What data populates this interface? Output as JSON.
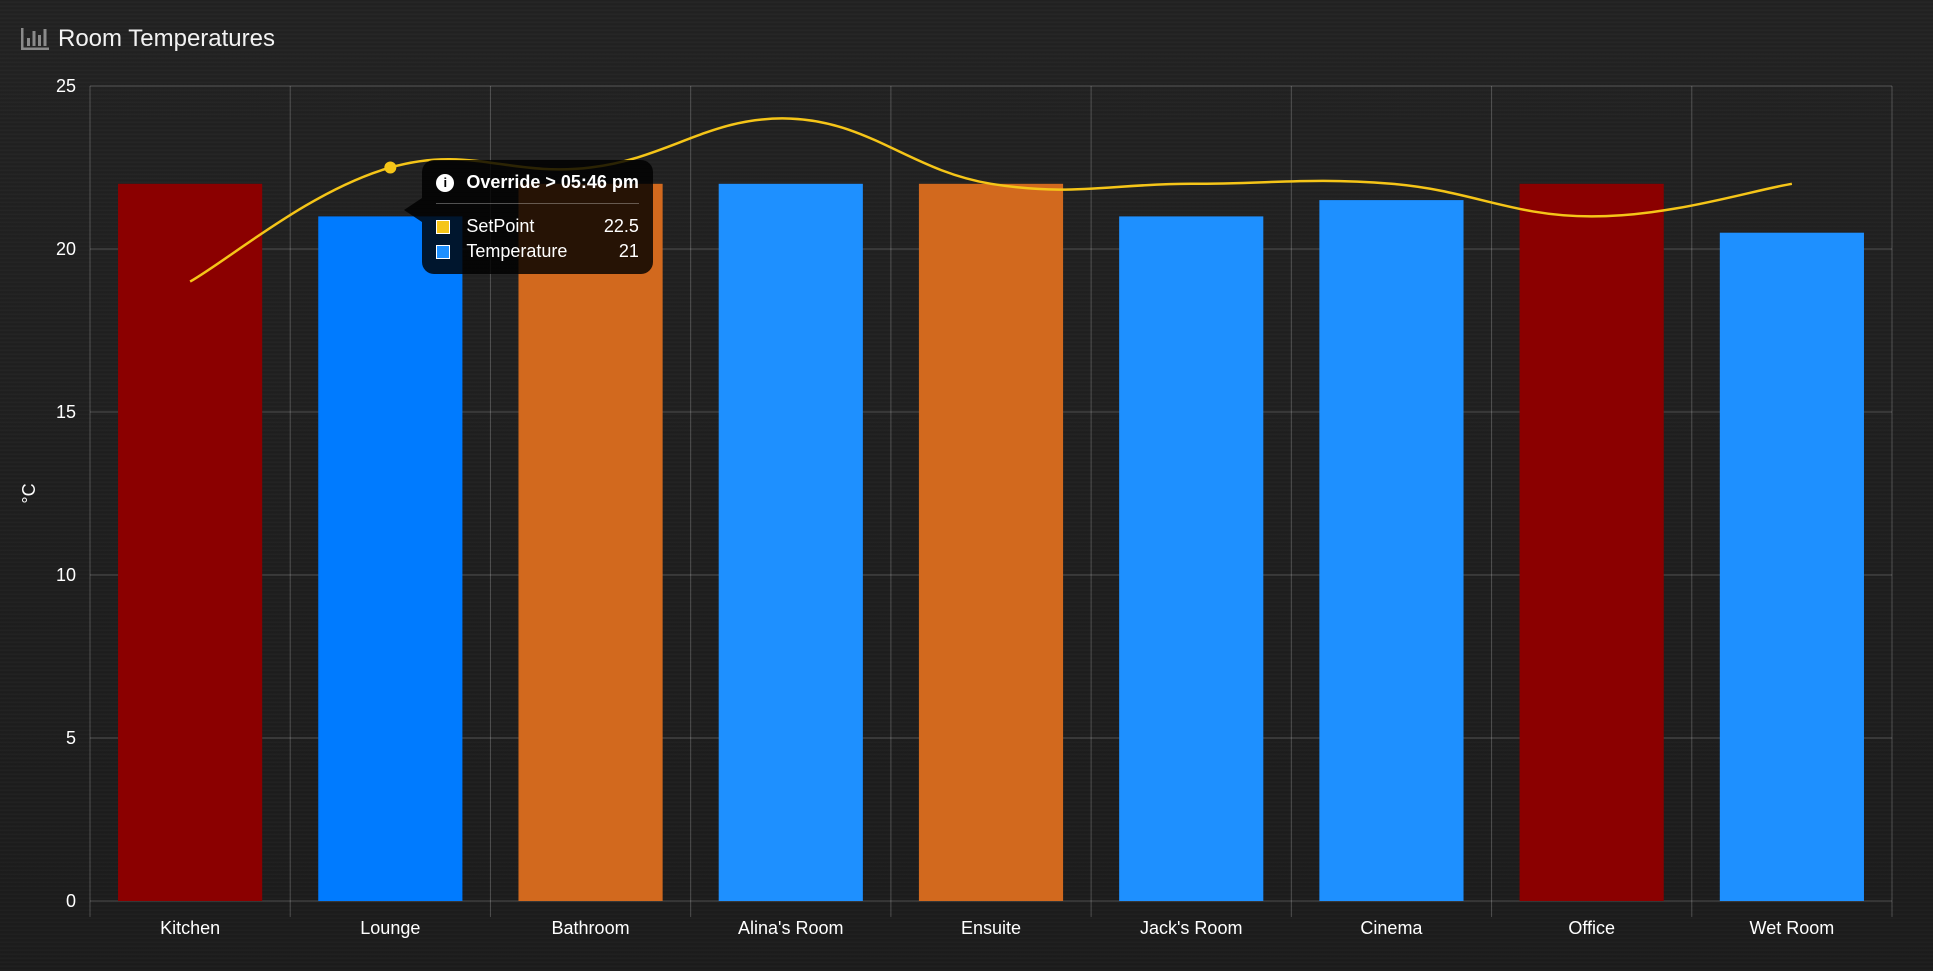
{
  "header": {
    "title": "Room Temperatures",
    "icon": "bar-chart-icon"
  },
  "chart_data": {
    "type": "bar",
    "categories": [
      "Kitchen",
      "Lounge",
      "Bathroom",
      "Alina's Room",
      "Ensuite",
      "Jack's Room",
      "Cinema",
      "Office",
      "Wet Room"
    ],
    "series": [
      {
        "name": "Temperature",
        "type": "bar",
        "values": [
          22,
          21,
          22,
          22,
          22,
          21,
          21.5,
          22,
          20.5
        ],
        "colors": [
          "#8b0000",
          "#007bff",
          "#d2691e",
          "#1e90ff",
          "#d2691e",
          "#1e90ff",
          "#1e90ff",
          "#8b0000",
          "#1e90ff"
        ]
      },
      {
        "name": "SetPoint",
        "type": "line",
        "values": [
          19,
          22.5,
          22.5,
          24,
          22,
          22,
          22,
          21,
          22
        ],
        "color": "#f5c518"
      }
    ],
    "ylabel": "°C",
    "ylim": [
      0,
      25
    ],
    "yticks": [
      0,
      5,
      10,
      15,
      20,
      25
    ],
    "grid": true
  },
  "tooltip": {
    "title": "Override > 05:46 pm",
    "category_index": 1,
    "rows": [
      {
        "name": "SetPoint",
        "value": "22.5",
        "color": "#f5c518"
      },
      {
        "name": "Temperature",
        "value": "21",
        "color": "#1e90ff"
      }
    ]
  }
}
